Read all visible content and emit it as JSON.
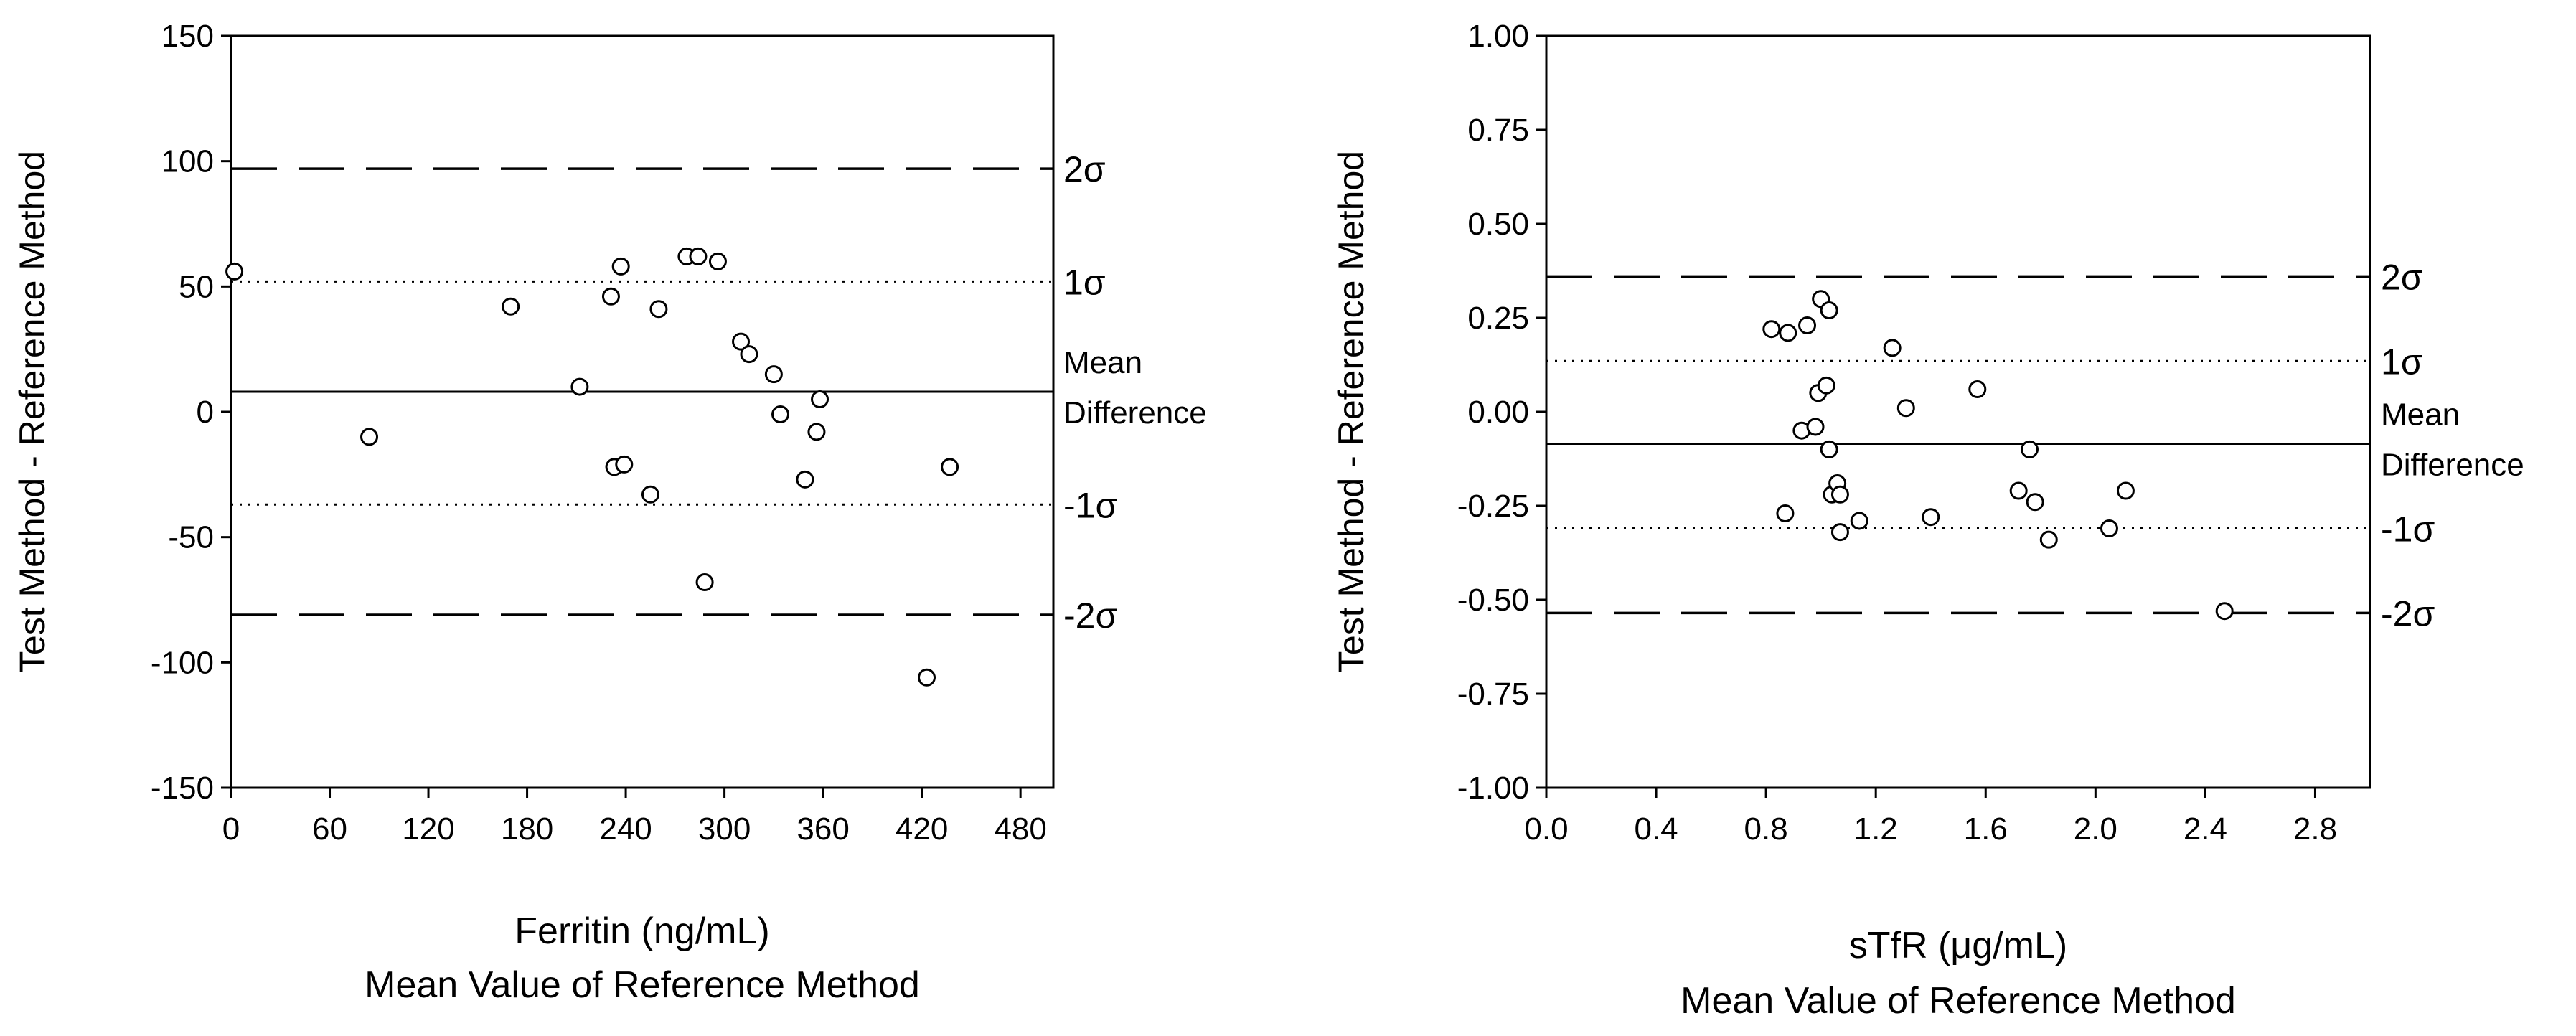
{
  "chart_data": [
    {
      "type": "scatter",
      "title": "",
      "xlabel": "Ferritin (ng/mL)",
      "xlabel2": "Mean Value of Reference Method",
      "ylabel": "Test Method - Reference Method",
      "xlim": [
        0,
        500
      ],
      "ylim": [
        -150,
        150
      ],
      "xticks": [
        0,
        60,
        120,
        180,
        240,
        300,
        360,
        420,
        480
      ],
      "xtick_labels": [
        "0",
        "60",
        "120",
        "180",
        "240",
        "300",
        "360",
        "420",
        "480"
      ],
      "yticks": [
        -150,
        -100,
        -50,
        0,
        50,
        100,
        150
      ],
      "ytick_labels": [
        "-150",
        "-100",
        "-50",
        "0",
        "50",
        "100",
        "150"
      ],
      "reference_lines": [
        {
          "name": "2sigma",
          "label": "2σ",
          "value": 97,
          "style": "dashed"
        },
        {
          "name": "1sigma",
          "label": "1σ",
          "value": 52,
          "style": "dotted"
        },
        {
          "name": "mean",
          "label": "Mean Difference",
          "label_lines": [
            "Mean",
            "Difference"
          ],
          "value": 8,
          "style": "solid"
        },
        {
          "name": "minus1sigma",
          "label": "-1σ",
          "value": -37,
          "style": "dotted"
        },
        {
          "name": "minus2sigma",
          "label": "-2σ",
          "value": -81,
          "style": "dashed"
        }
      ],
      "points": [
        {
          "x": 2,
          "y": 56
        },
        {
          "x": 84,
          "y": -10
        },
        {
          "x": 170,
          "y": 42
        },
        {
          "x": 212,
          "y": 10
        },
        {
          "x": 231,
          "y": 46
        },
        {
          "x": 233,
          "y": -22
        },
        {
          "x": 237,
          "y": 58
        },
        {
          "x": 239,
          "y": -21
        },
        {
          "x": 255,
          "y": -33
        },
        {
          "x": 260,
          "y": 41
        },
        {
          "x": 277,
          "y": 62
        },
        {
          "x": 284,
          "y": 62
        },
        {
          "x": 288,
          "y": -68
        },
        {
          "x": 296,
          "y": 60
        },
        {
          "x": 310,
          "y": 28
        },
        {
          "x": 315,
          "y": 23
        },
        {
          "x": 330,
          "y": 15
        },
        {
          "x": 334,
          "y": -1
        },
        {
          "x": 349,
          "y": -27
        },
        {
          "x": 356,
          "y": -8
        },
        {
          "x": 358,
          "y": 5
        },
        {
          "x": 423,
          "y": -106
        },
        {
          "x": 437,
          "y": -22
        }
      ]
    },
    {
      "type": "scatter",
      "title": "",
      "xlabel": "sTfR (μg/mL)",
      "xlabel2": "Mean Value of Reference Method",
      "ylabel": "Test Method - Reference Method",
      "xlim": [
        0,
        3.0
      ],
      "ylim": [
        -1.0,
        1.0
      ],
      "xticks": [
        0.0,
        0.4,
        0.8,
        1.2,
        1.6,
        2.0,
        2.4,
        2.8
      ],
      "xtick_labels": [
        "0.0",
        "0.4",
        "0.8",
        "1.2",
        "1.6",
        "2.0",
        "2.4",
        "2.8"
      ],
      "yticks": [
        -1.0,
        -0.75,
        -0.5,
        -0.25,
        0.0,
        0.25,
        0.5,
        0.75,
        1.0
      ],
      "ytick_labels": [
        "-1.00",
        "-0.75",
        "-0.50",
        "-0.25",
        "0.00",
        "0.25",
        "0.50",
        "0.75",
        "1.00"
      ],
      "reference_lines": [
        {
          "name": "2sigma",
          "label": "2σ",
          "value": 0.36,
          "style": "dashed"
        },
        {
          "name": "1sigma",
          "label": "1σ",
          "value": 0.135,
          "style": "dotted"
        },
        {
          "name": "mean",
          "label": "Mean Difference",
          "label_lines": [
            "Mean",
            "Difference"
          ],
          "value": -0.085,
          "style": "solid"
        },
        {
          "name": "minus1sigma",
          "label": "-1σ",
          "value": -0.31,
          "style": "dotted"
        },
        {
          "name": "minus2sigma",
          "label": "-2σ",
          "value": -0.535,
          "style": "dashed"
        }
      ],
      "points": [
        {
          "x": 0.82,
          "y": 0.22
        },
        {
          "x": 0.87,
          "y": -0.27
        },
        {
          "x": 0.88,
          "y": 0.21
        },
        {
          "x": 0.93,
          "y": -0.05
        },
        {
          "x": 0.95,
          "y": 0.23
        },
        {
          "x": 0.98,
          "y": -0.04
        },
        {
          "x": 0.99,
          "y": 0.05
        },
        {
          "x": 1.0,
          "y": 0.3
        },
        {
          "x": 1.02,
          "y": 0.07
        },
        {
          "x": 1.03,
          "y": -0.1
        },
        {
          "x": 1.03,
          "y": 0.27
        },
        {
          "x": 1.04,
          "y": -0.22
        },
        {
          "x": 1.06,
          "y": -0.19
        },
        {
          "x": 1.07,
          "y": -0.32
        },
        {
          "x": 1.07,
          "y": -0.22
        },
        {
          "x": 1.14,
          "y": -0.29
        },
        {
          "x": 1.26,
          "y": 0.17
        },
        {
          "x": 1.31,
          "y": 0.01
        },
        {
          "x": 1.4,
          "y": -0.28
        },
        {
          "x": 1.57,
          "y": 0.06
        },
        {
          "x": 1.72,
          "y": -0.21
        },
        {
          "x": 1.76,
          "y": -0.1
        },
        {
          "x": 1.78,
          "y": -0.24
        },
        {
          "x": 1.83,
          "y": -0.34
        },
        {
          "x": 2.05,
          "y": -0.31
        },
        {
          "x": 2.11,
          "y": -0.21
        },
        {
          "x": 2.47,
          "y": -0.53
        }
      ]
    }
  ]
}
